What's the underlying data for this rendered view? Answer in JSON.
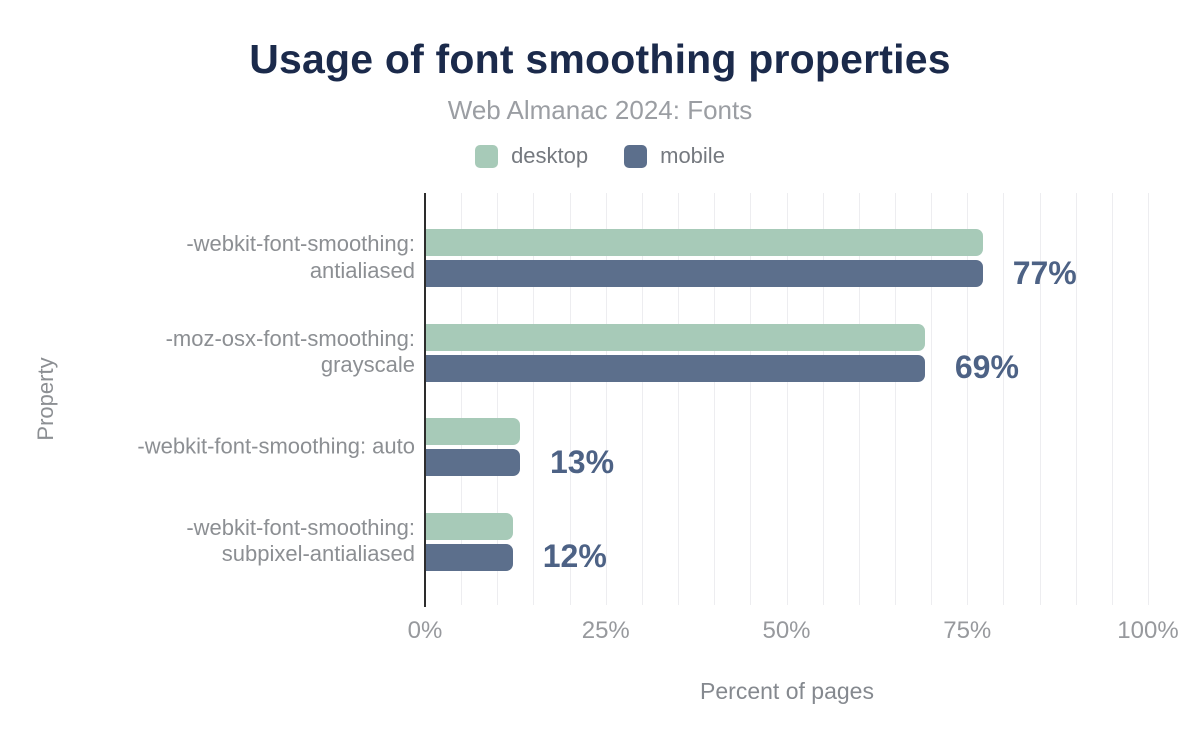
{
  "chart_data": {
    "type": "bar",
    "orientation": "horizontal",
    "title": "Usage of font smoothing properties",
    "subtitle": "Web Almanac 2024: Fonts",
    "xlabel": "Percent of pages",
    "ylabel": "Property",
    "categories": [
      "-webkit-font-smoothing: antialiased",
      "-moz-osx-font-smoothing: grayscale",
      "-webkit-font-smoothing: auto",
      "-webkit-font-smoothing: subpixel-antialiased"
    ],
    "series": [
      {
        "name": "desktop",
        "color": "#a7cab8",
        "values": [
          77,
          69,
          13,
          12
        ]
      },
      {
        "name": "mobile",
        "color": "#5c6f8c",
        "values": [
          77,
          69,
          13,
          12
        ]
      }
    ],
    "value_labels": [
      "77%",
      "69%",
      "13%",
      "12%"
    ],
    "x_ticks": [
      {
        "label": "0%",
        "value": 0
      },
      {
        "label": "25%",
        "value": 25
      },
      {
        "label": "50%",
        "value": 50
      },
      {
        "label": "75%",
        "value": 75
      },
      {
        "label": "100%",
        "value": 100
      }
    ],
    "xlim": [
      0,
      100
    ],
    "gridlines_every_pct": 5,
    "grid": "vertical",
    "legend_position": "top"
  },
  "colors": {
    "background": "#ffffff",
    "title": "#1b2a4b",
    "subtitle": "#9b9ea3",
    "legend_text": "#75797f",
    "category_label": "#8c8f93",
    "tick_label": "#97999d",
    "axis_title": "#85898f",
    "value_label": "#4d6285",
    "axis_line": "#2d2d2d",
    "gridline": "#ededf0",
    "desktop": "#a7cab8",
    "mobile": "#5c6f8c"
  }
}
